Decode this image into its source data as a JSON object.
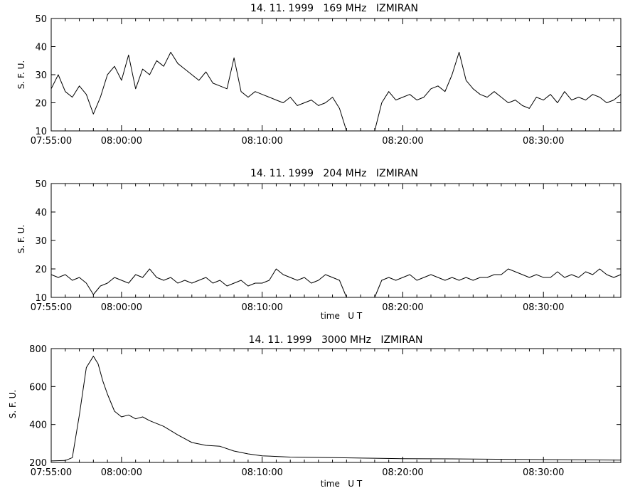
{
  "chart_data": [
    {
      "type": "line",
      "title": "14. 11. 1999   169 MHz   IZMIRAN",
      "ylabel": "S. F. U.",
      "xlabel": "",
      "ylim": [
        10,
        50
      ],
      "yticks": [
        10,
        20,
        30,
        40,
        50
      ],
      "xlim": [
        "07:55:00",
        "08:35:30"
      ],
      "xticks": [
        "07:55:00",
        "08:00:00",
        "08:10:00",
        "08:20:00",
        "08:30:00"
      ],
      "series": [
        {
          "x": [
            "07:55:00",
            "07:55:30",
            "07:56:00",
            "07:56:30",
            "07:57:00",
            "07:57:30",
            "07:58:00",
            "07:58:30",
            "07:59:00",
            "07:59:30",
            "08:00:00",
            "08:00:30",
            "08:01:00",
            "08:01:30",
            "08:02:00",
            "08:02:30",
            "08:03:00",
            "08:03:30",
            "08:04:00",
            "08:04:30",
            "08:05:00",
            "08:05:30",
            "08:06:00",
            "08:06:30",
            "08:07:00",
            "08:07:30",
            "08:08:00",
            "08:08:30",
            "08:09:00",
            "08:09:30",
            "08:10:00",
            "08:10:30",
            "08:11:00",
            "08:11:30",
            "08:12:00",
            "08:12:30",
            "08:13:00",
            "08:13:30",
            "08:14:00",
            "08:14:30",
            "08:15:00",
            "08:15:30",
            "08:16:00",
            "08:16:30",
            "08:17:00",
            "08:17:30",
            "08:18:00",
            "08:18:30",
            "08:19:00",
            "08:19:30",
            "08:20:00",
            "08:20:30",
            "08:21:00",
            "08:21:30",
            "08:22:00",
            "08:22:30",
            "08:23:00",
            "08:23:30",
            "08:24:00",
            "08:24:30",
            "08:25:00",
            "08:25:30",
            "08:26:00",
            "08:26:30",
            "08:27:00",
            "08:27:30",
            "08:28:00",
            "08:28:30",
            "08:29:00",
            "08:29:30",
            "08:30:00",
            "08:30:30",
            "08:31:00",
            "08:31:30",
            "08:32:00",
            "08:32:30",
            "08:33:00",
            "08:33:30",
            "08:34:00",
            "08:34:30",
            "08:35:00",
            "08:35:30"
          ],
          "y": [
            25,
            30,
            24,
            22,
            26,
            23,
            16,
            22,
            30,
            33,
            28,
            37,
            25,
            32,
            30,
            35,
            33,
            38,
            34,
            32,
            30,
            28,
            31,
            27,
            26,
            25,
            36,
            24,
            22,
            24,
            23,
            22,
            21,
            20,
            22,
            19,
            20,
            21,
            19,
            20,
            22,
            18,
            10,
            null,
            null,
            null,
            10,
            20,
            24,
            21,
            22,
            23,
            21,
            22,
            25,
            26,
            24,
            30,
            38,
            28,
            25,
            23,
            22,
            24,
            22,
            20,
            21,
            19,
            18,
            22,
            21,
            23,
            20,
            24,
            21,
            22,
            21,
            23,
            22,
            20,
            21,
            23
          ]
        }
      ]
    },
    {
      "type": "line",
      "title": "14. 11. 1999   204 MHz   IZMIRAN",
      "ylabel": "S. F. U.",
      "xlabel": "time   U T",
      "ylim": [
        10,
        50
      ],
      "yticks": [
        10,
        20,
        30,
        40,
        50
      ],
      "xlim": [
        "07:55:00",
        "08:35:30"
      ],
      "xticks": [
        "07:55:00",
        "08:00:00",
        "08:10:00",
        "08:20:00",
        "08:30:00"
      ],
      "series": [
        {
          "x": [
            "07:55:00",
            "07:55:30",
            "07:56:00",
            "07:56:30",
            "07:57:00",
            "07:57:30",
            "07:58:00",
            "07:58:30",
            "07:59:00",
            "07:59:30",
            "08:00:00",
            "08:00:30",
            "08:01:00",
            "08:01:30",
            "08:02:00",
            "08:02:30",
            "08:03:00",
            "08:03:30",
            "08:04:00",
            "08:04:30",
            "08:05:00",
            "08:05:30",
            "08:06:00",
            "08:06:30",
            "08:07:00",
            "08:07:30",
            "08:08:00",
            "08:08:30",
            "08:09:00",
            "08:09:30",
            "08:10:00",
            "08:10:30",
            "08:11:00",
            "08:11:30",
            "08:12:00",
            "08:12:30",
            "08:13:00",
            "08:13:30",
            "08:14:00",
            "08:14:30",
            "08:15:00",
            "08:15:30",
            "08:16:00",
            "08:16:30",
            "08:17:00",
            "08:17:30",
            "08:18:00",
            "08:18:30",
            "08:19:00",
            "08:19:30",
            "08:20:00",
            "08:20:30",
            "08:21:00",
            "08:21:30",
            "08:22:00",
            "08:22:30",
            "08:23:00",
            "08:23:30",
            "08:24:00",
            "08:24:30",
            "08:25:00",
            "08:25:30",
            "08:26:00",
            "08:26:30",
            "08:27:00",
            "08:27:30",
            "08:28:00",
            "08:28:30",
            "08:29:00",
            "08:29:30",
            "08:30:00",
            "08:30:30",
            "08:31:00",
            "08:31:30",
            "08:32:00",
            "08:32:30",
            "08:33:00",
            "08:33:30",
            "08:34:00",
            "08:34:30",
            "08:35:00",
            "08:35:30"
          ],
          "y": [
            18,
            17,
            18,
            16,
            17,
            15,
            11,
            14,
            15,
            17,
            16,
            15,
            18,
            17,
            20,
            17,
            16,
            17,
            15,
            16,
            15,
            16,
            17,
            15,
            16,
            14,
            15,
            16,
            14,
            15,
            15,
            16,
            20,
            18,
            17,
            16,
            17,
            15,
            16,
            18,
            17,
            16,
            10,
            null,
            null,
            null,
            10,
            16,
            17,
            16,
            17,
            18,
            16,
            17,
            18,
            17,
            16,
            17,
            16,
            17,
            16,
            17,
            17,
            18,
            18,
            20,
            19,
            18,
            17,
            18,
            17,
            17,
            19,
            17,
            18,
            17,
            19,
            18,
            20,
            18,
            17,
            18
          ]
        }
      ]
    },
    {
      "type": "line",
      "title": "14. 11. 1999   3000 MHz   IZMIRAN",
      "ylabel": "S. F. U.",
      "xlabel": "time   U T",
      "ylim": [
        200,
        800
      ],
      "yticks": [
        200,
        400,
        600,
        800
      ],
      "xlim": [
        "07:55:00",
        "08:35:30"
      ],
      "xticks": [
        "07:55:00",
        "08:00:00",
        "08:10:00",
        "08:20:00",
        "08:30:00"
      ],
      "series": [
        {
          "x": [
            "07:55:00",
            "07:56:00",
            "07:56:30",
            "07:57:00",
            "07:57:30",
            "07:58:00",
            "07:58:20",
            "07:58:40",
            "07:59:00",
            "07:59:30",
            "08:00:00",
            "08:00:30",
            "08:01:00",
            "08:01:30",
            "08:02:00",
            "08:03:00",
            "08:04:00",
            "08:05:00",
            "08:06:00",
            "08:07:00",
            "08:08:00",
            "08:09:00",
            "08:10:00",
            "08:12:00",
            "08:15:00",
            "08:18:00",
            "08:20:00",
            "08:25:00",
            "08:30:00",
            "08:35:30"
          ],
          "y": [
            208,
            210,
            225,
            450,
            700,
            760,
            720,
            630,
            560,
            470,
            440,
            450,
            430,
            440,
            420,
            390,
            345,
            305,
            290,
            285,
            260,
            245,
            235,
            228,
            225,
            222,
            220,
            218,
            215,
            212
          ]
        }
      ]
    }
  ]
}
